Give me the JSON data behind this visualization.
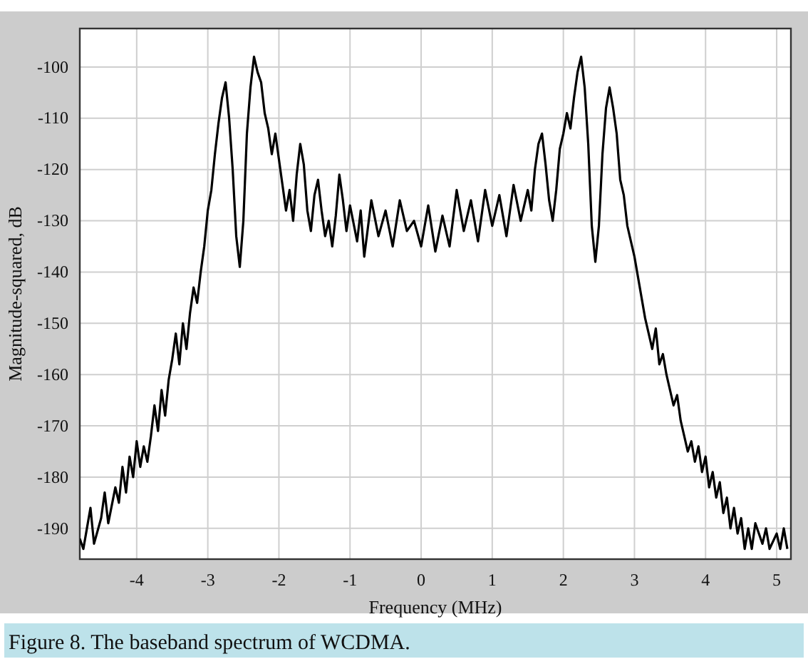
{
  "chart_data": {
    "type": "line",
    "xlabel": "Frequency (MHz)",
    "ylabel": "Magnitude-squared, dB",
    "annotations": [
      "Figure 8. The baseband spectrum of WCDMA."
    ],
    "grid": true,
    "xlim": [
      -4.8,
      5.2
    ],
    "ylim": [
      -196,
      -92.5
    ],
    "xticks": [
      -4,
      -3,
      -2,
      -1,
      0,
      1,
      2,
      3,
      4,
      5
    ],
    "yticks": [
      -190,
      -180,
      -170,
      -160,
      -150,
      -140,
      -130,
      -120,
      -110,
      -100
    ],
    "series": [
      {
        "color": "#000000",
        "x": [
          -4.8,
          -4.75,
          -4.7,
          -4.65,
          -4.6,
          -4.5,
          -4.45,
          -4.4,
          -4.3,
          -4.25,
          -4.2,
          -4.15,
          -4.1,
          -4.05,
          -4.0,
          -3.95,
          -3.9,
          -3.85,
          -3.8,
          -3.75,
          -3.7,
          -3.65,
          -3.6,
          -3.55,
          -3.5,
          -3.45,
          -3.4,
          -3.35,
          -3.3,
          -3.25,
          -3.2,
          -3.15,
          -3.1,
          -3.05,
          -3.0,
          -2.95,
          -2.9,
          -2.85,
          -2.8,
          -2.75,
          -2.7,
          -2.65,
          -2.6,
          -2.55,
          -2.5,
          -2.45,
          -2.4,
          -2.35,
          -2.3,
          -2.25,
          -2.2,
          -2.15,
          -2.1,
          -2.05,
          -2.0,
          -1.95,
          -1.9,
          -1.85,
          -1.8,
          -1.75,
          -1.7,
          -1.65,
          -1.6,
          -1.55,
          -1.5,
          -1.45,
          -1.4,
          -1.35,
          -1.3,
          -1.25,
          -1.2,
          -1.15,
          -1.1,
          -1.05,
          -1.0,
          -0.9,
          -0.85,
          -0.8,
          -0.7,
          -0.6,
          -0.5,
          -0.4,
          -0.3,
          -0.2,
          -0.1,
          0,
          0.1,
          0.2,
          0.3,
          0.4,
          0.5,
          0.6,
          0.7,
          0.8,
          0.9,
          1.0,
          1.1,
          1.2,
          1.3,
          1.4,
          1.5,
          1.55,
          1.6,
          1.65,
          1.7,
          1.75,
          1.8,
          1.85,
          1.9,
          1.95,
          2.0,
          2.05,
          2.1,
          2.15,
          2.2,
          2.25,
          2.3,
          2.35,
          2.4,
          2.45,
          2.5,
          2.55,
          2.6,
          2.65,
          2.7,
          2.75,
          2.8,
          2.85,
          2.9,
          2.95,
          3.0,
          3.05,
          3.1,
          3.15,
          3.2,
          3.25,
          3.3,
          3.35,
          3.4,
          3.45,
          3.5,
          3.55,
          3.6,
          3.65,
          3.7,
          3.75,
          3.8,
          3.85,
          3.9,
          3.95,
          4.0,
          4.05,
          4.1,
          4.15,
          4.2,
          4.25,
          4.3,
          4.35,
          4.4,
          4.45,
          4.5,
          4.55,
          4.6,
          4.65,
          4.7,
          4.8,
          4.85,
          4.9,
          5.0,
          5.05,
          5.1,
          5.15
        ],
        "values": [
          -192,
          -194,
          -190,
          -186,
          -193,
          -188,
          -183,
          -189,
          -182,
          -185,
          -178,
          -183,
          -176,
          -180,
          -173,
          -178,
          -174,
          -177,
          -172,
          -166,
          -171,
          -163,
          -168,
          -161,
          -157,
          -152,
          -158,
          -150,
          -155,
          -148,
          -143,
          -146,
          -140,
          -135,
          -128,
          -124,
          -117,
          -111,
          -106,
          -103,
          -110,
          -120,
          -133,
          -139,
          -130,
          -113,
          -104,
          -98,
          -101,
          -103,
          -109,
          -112,
          -117,
          -113,
          -118,
          -123,
          -128,
          -124,
          -130,
          -121,
          -115,
          -119,
          -128,
          -132,
          -125,
          -122,
          -128,
          -133,
          -130,
          -135,
          -129,
          -121,
          -126,
          -132,
          -127,
          -134,
          -128,
          -137,
          -126,
          -133,
          -128,
          -135,
          -126,
          -132,
          -130,
          -135,
          -127,
          -136,
          -129,
          -135,
          -124,
          -132,
          -126,
          -134,
          -124,
          -131,
          -125,
          -133,
          -123,
          -130,
          -124,
          -128,
          -120,
          -115,
          -113,
          -119,
          -126,
          -130,
          -124,
          -116,
          -113,
          -109,
          -112,
          -106,
          -101,
          -98,
          -104,
          -115,
          -131,
          -138,
          -131,
          -117,
          -108,
          -104,
          -108,
          -113,
          -122,
          -125,
          -131,
          -134,
          -137,
          -141,
          -145,
          -149,
          -152,
          -155,
          -151,
          -158,
          -156,
          -160,
          -163,
          -166,
          -164,
          -169,
          -172,
          -175,
          -173,
          -177,
          -174,
          -179,
          -176,
          -182,
          -179,
          -184,
          -181,
          -187,
          -184,
          -190,
          -186,
          -191,
          -188,
          -194,
          -190,
          -194,
          -189,
          -193,
          -190,
          -194,
          -191,
          -194,
          -190,
          -194
        ]
      }
    ]
  }
}
